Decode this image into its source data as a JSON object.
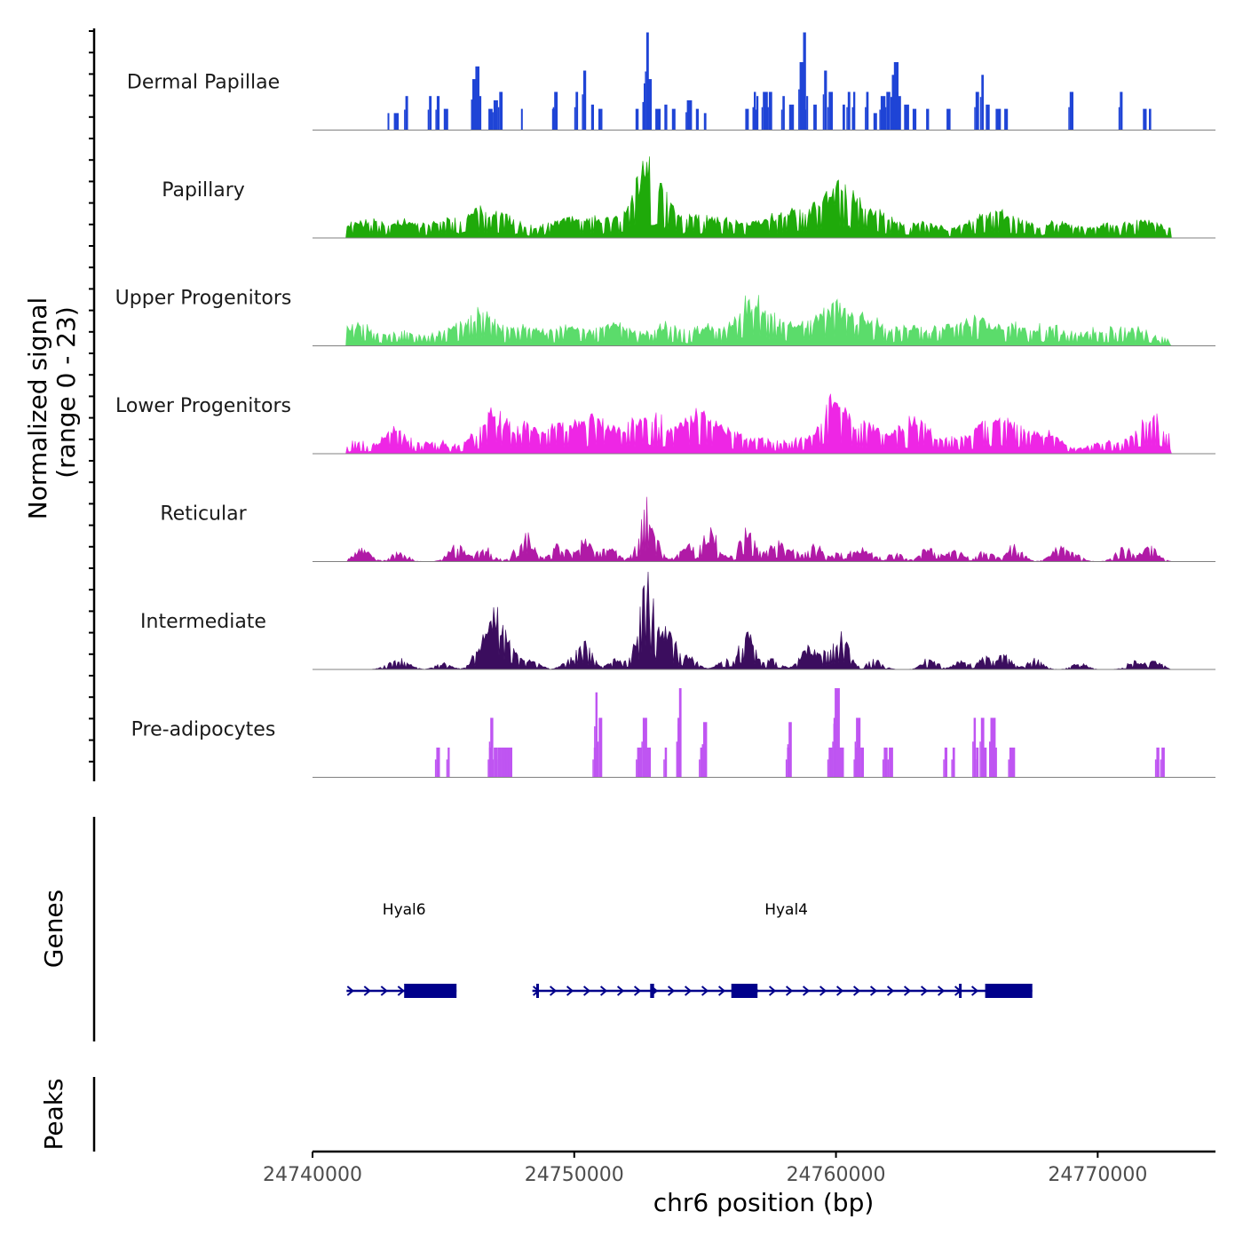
{
  "chart_data": {
    "type": "area",
    "title": "",
    "xlabel": "chr6 position (bp)",
    "ylabel_line1": "Normalized signal",
    "ylabel_line2": "(range 0 - 23)",
    "xlim": [
      24740000,
      24774500
    ],
    "ylim": [
      0,
      23
    ],
    "x_ticks": [
      24740000,
      24750000,
      24760000,
      24770000
    ],
    "x_tick_labels": [
      "24740000",
      "24750000",
      "24760000",
      "24770000"
    ],
    "panel_labels": {
      "genes": "Genes",
      "peaks": "Peaks"
    },
    "series": [
      {
        "name": "Dermal Papillae",
        "color": "#1f44d6",
        "style": "spikes",
        "peaks": [
          [
            24742900,
            4
          ],
          [
            24743200,
            4
          ],
          [
            24743600,
            8
          ],
          [
            24744500,
            8
          ],
          [
            24744800,
            8
          ],
          [
            24745100,
            5
          ],
          [
            24746200,
            12
          ],
          [
            24746300,
            15
          ],
          [
            24746400,
            8
          ],
          [
            24746800,
            5
          ],
          [
            24747000,
            7
          ],
          [
            24747200,
            9
          ],
          [
            24748000,
            5
          ],
          [
            24749200,
            5
          ],
          [
            24749300,
            9
          ],
          [
            24750100,
            9
          ],
          [
            24750400,
            14
          ],
          [
            24750700,
            6
          ],
          [
            24751000,
            5
          ],
          [
            24752400,
            5
          ],
          [
            24752700,
            11
          ],
          [
            24752800,
            23
          ],
          [
            24752900,
            12
          ],
          [
            24753200,
            5
          ],
          [
            24753500,
            6
          ],
          [
            24753800,
            5
          ],
          [
            24754400,
            7
          ],
          [
            24754700,
            5
          ],
          [
            24755000,
            4
          ],
          [
            24756600,
            5
          ],
          [
            24756900,
            9
          ],
          [
            24757000,
            8
          ],
          [
            24757300,
            9
          ],
          [
            24757500,
            9
          ],
          [
            24758000,
            8
          ],
          [
            24758300,
            6
          ],
          [
            24758700,
            16
          ],
          [
            24758800,
            23
          ],
          [
            24758900,
            8
          ],
          [
            24759200,
            6
          ],
          [
            24759600,
            14
          ],
          [
            24759800,
            9
          ],
          [
            24760300,
            6
          ],
          [
            24760500,
            9
          ],
          [
            24760700,
            9
          ],
          [
            24761200,
            9
          ],
          [
            24761500,
            4
          ],
          [
            24761800,
            8
          ],
          [
            24762000,
            9
          ],
          [
            24762200,
            13
          ],
          [
            24762300,
            16
          ],
          [
            24762400,
            8
          ],
          [
            24762700,
            6
          ],
          [
            24763000,
            5
          ],
          [
            24763500,
            5
          ],
          [
            24764300,
            5
          ],
          [
            24765400,
            9
          ],
          [
            24765600,
            13
          ],
          [
            24765800,
            6
          ],
          [
            24766200,
            5
          ],
          [
            24766500,
            5
          ],
          [
            24769000,
            9
          ],
          [
            24770900,
            9
          ],
          [
            24771800,
            5
          ],
          [
            24772000,
            5
          ]
        ]
      },
      {
        "name": "Papillary",
        "color": "#1faa0a",
        "style": "dense",
        "baseline": 1.5,
        "spread": 1500,
        "peaks": [
          [
            24742000,
            3
          ],
          [
            24743500,
            2.5
          ],
          [
            24745000,
            2.5
          ],
          [
            24746200,
            4.5
          ],
          [
            24747300,
            4
          ],
          [
            24749500,
            3
          ],
          [
            24750800,
            3.5
          ],
          [
            24752800,
            17
          ],
          [
            24754500,
            4
          ],
          [
            24755800,
            3
          ],
          [
            24757500,
            3
          ],
          [
            24758600,
            4.5
          ],
          [
            24760100,
            12
          ],
          [
            24761500,
            5
          ],
          [
            24763300,
            2.5
          ],
          [
            24765600,
            4
          ],
          [
            24766700,
            3.5
          ],
          [
            24768500,
            2.5
          ],
          [
            24770500,
            2
          ],
          [
            24772000,
            3
          ]
        ]
      },
      {
        "name": "Upper Progenitors",
        "color": "#5bdc6b",
        "style": "dense",
        "baseline": 1.8,
        "spread": 1300,
        "peaks": [
          [
            24741700,
            4
          ],
          [
            24743500,
            2.5
          ],
          [
            24745500,
            3
          ],
          [
            24746500,
            6.5
          ],
          [
            24748200,
            3
          ],
          [
            24749800,
            3.5
          ],
          [
            24751500,
            4
          ],
          [
            24753400,
            3.5
          ],
          [
            24755000,
            3
          ],
          [
            24756700,
            9
          ],
          [
            24757600,
            4
          ],
          [
            24758800,
            3.5
          ],
          [
            24760000,
            8.5
          ],
          [
            24761200,
            5
          ],
          [
            24762800,
            3
          ],
          [
            24764100,
            3
          ],
          [
            24765300,
            5
          ],
          [
            24766700,
            3.5
          ],
          [
            24768200,
            3.5
          ],
          [
            24770000,
            2.5
          ],
          [
            24771300,
            3
          ]
        ]
      },
      {
        "name": "Lower Progenitors",
        "color": "#ee26e5",
        "style": "dense",
        "baseline": 1.2,
        "spread": 1100,
        "peaks": [
          [
            24741600,
            2
          ],
          [
            24743200,
            5
          ],
          [
            24744700,
            2
          ],
          [
            24746100,
            2.5
          ],
          [
            24747000,
            9
          ],
          [
            24748200,
            6
          ],
          [
            24749400,
            6
          ],
          [
            24750200,
            5
          ],
          [
            24751000,
            7
          ],
          [
            24752200,
            6
          ],
          [
            24753100,
            8
          ],
          [
            24754200,
            5
          ],
          [
            24755000,
            8
          ],
          [
            24756000,
            4
          ],
          [
            24757200,
            3
          ],
          [
            24758600,
            3
          ],
          [
            24759800,
            4
          ],
          [
            24760000,
            10
          ],
          [
            24761200,
            6
          ],
          [
            24762300,
            3.5
          ],
          [
            24763100,
            7
          ],
          [
            24764400,
            3
          ],
          [
            24765500,
            5
          ],
          [
            24766200,
            6
          ],
          [
            24767000,
            5
          ],
          [
            24768100,
            4
          ],
          [
            24770300,
            2.5
          ],
          [
            24771500,
            3
          ],
          [
            24772200,
            7.5
          ]
        ]
      },
      {
        "name": "Reticular",
        "color": "#b01aa6",
        "style": "dense",
        "baseline": 0,
        "spread": 750,
        "peaks": [
          [
            24741900,
            3
          ],
          [
            24743300,
            2.5
          ],
          [
            24745500,
            4
          ],
          [
            24746600,
            3.5
          ],
          [
            24748100,
            7
          ],
          [
            24749400,
            4
          ],
          [
            24750400,
            5
          ],
          [
            24751300,
            4
          ],
          [
            24752800,
            14
          ],
          [
            24754300,
            4
          ],
          [
            24755200,
            7.5
          ],
          [
            24756600,
            8
          ],
          [
            24757700,
            4.5
          ],
          [
            24758300,
            2.5
          ],
          [
            24759200,
            4
          ],
          [
            24760300,
            3
          ],
          [
            24761100,
            3
          ],
          [
            24762200,
            2.5
          ],
          [
            24763600,
            4
          ],
          [
            24764600,
            3
          ],
          [
            24765700,
            2.5
          ],
          [
            24766800,
            4
          ],
          [
            24768500,
            3
          ],
          [
            24769000,
            2.5
          ],
          [
            24771000,
            3.5
          ],
          [
            24772000,
            3.5
          ]
        ]
      },
      {
        "name": "Intermediate",
        "color": "#3b0d5e",
        "style": "dense",
        "baseline": 0,
        "spread": 700,
        "peaks": [
          [
            24743000,
            1.5
          ],
          [
            24743500,
            2
          ],
          [
            24745000,
            1.5
          ],
          [
            24746400,
            5
          ],
          [
            24747000,
            13
          ],
          [
            24747600,
            5
          ],
          [
            24748400,
            2.5
          ],
          [
            24749800,
            2
          ],
          [
            24750400,
            6
          ],
          [
            24751600,
            2.5
          ],
          [
            24752300,
            2
          ],
          [
            24752800,
            21
          ],
          [
            24753600,
            10
          ],
          [
            24754400,
            3
          ],
          [
            24755800,
            2.5
          ],
          [
            24756600,
            9
          ],
          [
            24757600,
            2.5
          ],
          [
            24758900,
            5
          ],
          [
            24759500,
            3.5
          ],
          [
            24760200,
            9
          ],
          [
            24761500,
            2.5
          ],
          [
            24763600,
            3
          ],
          [
            24764800,
            2
          ],
          [
            24765700,
            3
          ],
          [
            24766400,
            3.5
          ],
          [
            24767600,
            2.5
          ],
          [
            24769300,
            1.5
          ],
          [
            24771400,
            2
          ],
          [
            24772200,
            2
          ]
        ]
      },
      {
        "name": "Pre-adipocytes",
        "color": "#bf55f2",
        "style": "spikes",
        "peaks": [
          [
            24744800,
            7
          ],
          [
            24745200,
            7
          ],
          [
            24746800,
            7
          ],
          [
            24746850,
            14
          ],
          [
            24747000,
            7
          ],
          [
            24747150,
            7
          ],
          [
            24747300,
            7
          ],
          [
            24747450,
            7
          ],
          [
            24747550,
            7
          ],
          [
            24750800,
            7
          ],
          [
            24750850,
            20
          ],
          [
            24751000,
            14
          ],
          [
            24752500,
            7
          ],
          [
            24752700,
            14
          ],
          [
            24752850,
            7
          ],
          [
            24753500,
            7
          ],
          [
            24754000,
            14
          ],
          [
            24754050,
            21
          ],
          [
            24754900,
            7
          ],
          [
            24755000,
            13
          ],
          [
            24758200,
            7
          ],
          [
            24758250,
            13
          ],
          [
            24759800,
            7
          ],
          [
            24760000,
            14
          ],
          [
            24760050,
            21
          ],
          [
            24760200,
            7
          ],
          [
            24760800,
            7
          ],
          [
            24760850,
            14
          ],
          [
            24761000,
            7
          ],
          [
            24761900,
            7
          ],
          [
            24762100,
            7
          ],
          [
            24764200,
            7
          ],
          [
            24764500,
            7
          ],
          [
            24765300,
            14
          ],
          [
            24765400,
            7
          ],
          [
            24765600,
            14
          ],
          [
            24765700,
            7
          ],
          [
            24766000,
            14
          ],
          [
            24766100,
            7
          ],
          [
            24766700,
            7
          ],
          [
            24766800,
            7
          ],
          [
            24772300,
            7
          ],
          [
            24772500,
            7
          ]
        ]
      }
    ],
    "genes": [
      {
        "name": "Hyal6",
        "start": 24741300,
        "end": 24745500,
        "strand": "+",
        "exons": [
          [
            24743500,
            24745500
          ]
        ],
        "label_x": 24743500
      },
      {
        "name": "Hyal4",
        "start": 24748400,
        "end": 24767500,
        "strand": "+",
        "exons": [
          [
            24748550,
            24748650
          ],
          [
            24752900,
            24753050
          ],
          [
            24756000,
            24757000
          ],
          [
            24764700,
            24764800
          ],
          [
            24765700,
            24767500
          ]
        ],
        "label_x": 24758100
      }
    ]
  }
}
